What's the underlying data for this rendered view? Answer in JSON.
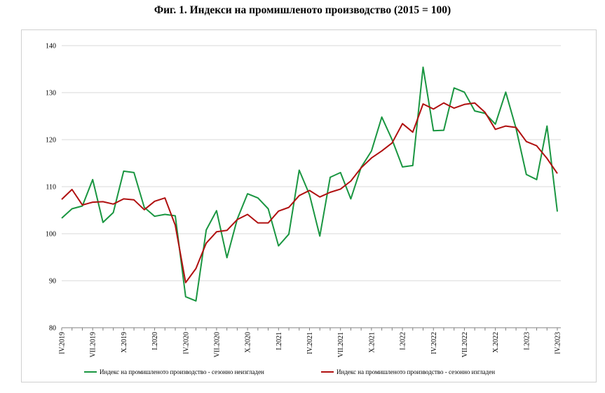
{
  "chart_data": {
    "type": "line",
    "title": "Фиг. 1. Индекси на промишленото производство (2015 = 100)",
    "xlabel": "",
    "ylabel": "",
    "ylim": [
      80,
      140
    ],
    "yticks": [
      80,
      90,
      100,
      110,
      120,
      130,
      140
    ],
    "grid": true,
    "legend_position": "bottom",
    "x_tick_labels": [
      "IV.2019",
      "VII.2019",
      "X.2019",
      "I.2020",
      "IV.2020",
      "VII.2020",
      "X.2020",
      "I.2021",
      "IV.2021",
      "VII.2021",
      "X.2021",
      "I.2022",
      "IV.2022",
      "VII.2022",
      "X.2022",
      "I.2023",
      "IV.2023"
    ],
    "series": [
      {
        "name": "Индекс на промишленото производство - сезонно неизгладен",
        "color": "#1a9641",
        "values": [
          103.3,
          105.3,
          105.9,
          111.5,
          102.4,
          104.5,
          113.3,
          113.0,
          105.6,
          103.7,
          104.1,
          103.8,
          86.6,
          85.7,
          100.8,
          104.9,
          94.9,
          103.1,
          108.5,
          107.6,
          105.3,
          97.4,
          99.9,
          113.5,
          108.3,
          99.5,
          112.0,
          113.0,
          107.4,
          114.1,
          117.6,
          124.8,
          120.0,
          114.2,
          114.5,
          135.4,
          121.9,
          122.0,
          131.0,
          130.1,
          126.1,
          125.6,
          123.3,
          130.1,
          122.4,
          112.6,
          111.5,
          122.9,
          104.7
        ]
      },
      {
        "name": "Индекс на промишленото производство - сезонно изгладен",
        "color": "#b01010",
        "values": [
          107.3,
          109.4,
          106.1,
          106.7,
          106.8,
          106.3,
          107.4,
          107.2,
          105.1,
          106.9,
          107.6,
          101.8,
          89.6,
          92.6,
          98.0,
          100.4,
          100.7,
          103.0,
          104.1,
          102.3,
          102.3,
          104.8,
          105.6,
          108.1,
          109.2,
          107.8,
          108.8,
          109.5,
          111.2,
          114.0,
          116.1,
          117.6,
          119.3,
          123.4,
          121.6,
          127.6,
          126.5,
          127.8,
          126.7,
          127.5,
          127.8,
          125.8,
          122.2,
          122.9,
          122.6,
          119.6,
          118.7,
          116.0,
          112.8
        ]
      }
    ]
  }
}
